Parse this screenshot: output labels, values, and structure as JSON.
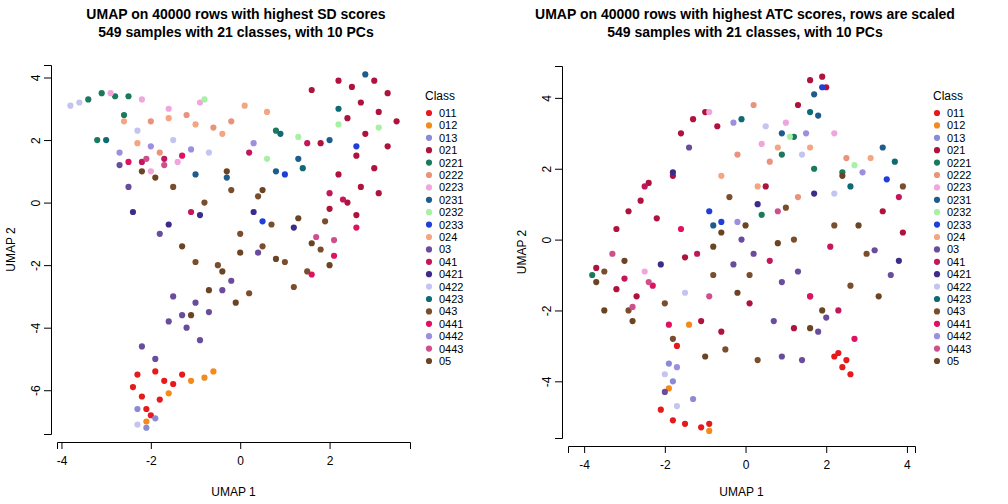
{
  "chart_data": [
    {
      "type": "scatter",
      "title": "UMAP on 40000 rows with highest SD scores",
      "subtitle": "549 samples with 21 classes, with 10 PCs",
      "x_label": "UMAP 1",
      "y_label": "UMAP 2",
      "legend_title": "Class",
      "legend": "right",
      "marker": "circle",
      "xlim": [
        -4.1,
        3.8
      ],
      "ylim": [
        -7.4,
        4.4
      ],
      "xticks": [
        -4,
        -2,
        0,
        2
      ],
      "yticks": [
        -6,
        -4,
        -2,
        0,
        2,
        4
      ],
      "series": [
        {
          "name": "011",
          "color": "#e41a1c",
          "x": [
            -2.3,
            -2.2,
            -2.1,
            -2.0,
            -1.8,
            -1.7,
            -1.5,
            -1.3,
            -2.4,
            -1.9
          ],
          "y": [
            -5.5,
            -6.2,
            -6.6,
            -6.8,
            -6.3,
            -5.7,
            -5.8,
            -5.5,
            -5.9,
            -5.4
          ]
        },
        {
          "name": "012",
          "color": "#f28a1c",
          "x": [
            -0.8,
            -0.6,
            -1.1,
            -1.6,
            -2.1
          ],
          "y": [
            -5.6,
            -5.4,
            -5.7,
            -6.1,
            -7.0
          ]
        },
        {
          "name": "013",
          "color": "#8a8ad6",
          "x": [
            -2.1,
            -1.9,
            -2.3
          ],
          "y": [
            -7.2,
            -6.9,
            -6.6
          ]
        },
        {
          "name": "021",
          "color": "#b0123e",
          "x": [
            2.2,
            2.5,
            3.0,
            3.3,
            2.7,
            3.1,
            2.4,
            3.5,
            2.8,
            3.3,
            2.6,
            3.0,
            2.2,
            2.7,
            3.1,
            2.4,
            2.0,
            2.6,
            1.6,
            1.8
          ],
          "y": [
            3.9,
            3.7,
            3.9,
            3.5,
            3.2,
            2.9,
            2.7,
            2.6,
            2.2,
            1.8,
            1.5,
            1.1,
            0.9,
            0.5,
            0.3,
            0.0,
            -0.2,
            -0.4,
            3.6,
            1.9
          ]
        },
        {
          "name": "0221",
          "color": "#1b7a5e",
          "x": [
            -3.4,
            -3.1,
            -2.8,
            -2.5,
            -3.2,
            -2.6,
            0.8
          ],
          "y": [
            3.3,
            3.5,
            3.4,
            3.4,
            2.0,
            2.8,
            2.3
          ]
        },
        {
          "name": "0222",
          "color": "#e9937c",
          "x": [
            -2.0,
            -1.2,
            -0.6,
            -0.2,
            -1.8
          ],
          "y": [
            2.6,
            2.8,
            2.4,
            2.6,
            1.6
          ]
        },
        {
          "name": "0223",
          "color": "#f0a6dc",
          "x": [
            -2.9,
            -2.2,
            -1.6,
            -0.9,
            -2.0,
            -1.4
          ],
          "y": [
            3.5,
            3.3,
            3.0,
            3.2,
            1.0,
            1.3
          ]
        },
        {
          "name": "0231",
          "color": "#1f5c8e",
          "x": [
            -0.3,
            0.8,
            1.3,
            2.8,
            2.0,
            -1.0
          ],
          "y": [
            0.8,
            1.0,
            1.4,
            4.1,
            2.0,
            0.9
          ]
        },
        {
          "name": "0232",
          "color": "#a8f0a4",
          "x": [
            0.6,
            1.3,
            2.2,
            3.1,
            -0.8
          ],
          "y": [
            1.4,
            2.1,
            2.5,
            2.4,
            3.3
          ]
        },
        {
          "name": "0233",
          "color": "#1f3fd8",
          "x": [
            0.5,
            1.0,
            2.6
          ],
          "y": [
            -0.6,
            0.9,
            1.8
          ]
        },
        {
          "name": "024",
          "color": "#f4a582",
          "x": [
            -2.6,
            -1.6,
            -1.0,
            0.1,
            0.6,
            -0.4,
            -2.3
          ],
          "y": [
            2.6,
            2.7,
            2.5,
            3.1,
            2.9,
            2.2,
            1.9
          ]
        },
        {
          "name": "03",
          "color": "#6a4c9c",
          "x": [
            -2.7,
            -2.5,
            -1.8,
            -1.5,
            -1.3,
            -1.0,
            -1.2,
            -0.7,
            -0.2,
            -0.4,
            -2.2,
            -1.9,
            0.4,
            -0.9,
            -1.6
          ],
          "y": [
            1.2,
            0.5,
            -1.0,
            -3.0,
            -3.6,
            -3.2,
            -4.0,
            -3.5,
            -2.5,
            -2.8,
            -4.6,
            -5.0,
            -1.6,
            -4.4,
            -3.8
          ]
        },
        {
          "name": "041",
          "color": "#c2185b",
          "x": [
            -2.2,
            -1.7,
            0.2,
            1.5,
            2.0,
            2.3,
            -1.1
          ],
          "y": [
            1.3,
            1.4,
            1.6,
            1.9,
            0.3,
            0.1,
            -0.3
          ]
        },
        {
          "name": "0421",
          "color": "#3d2b8c",
          "x": [
            -2.4,
            -1.6,
            -0.9,
            0.3,
            1.2
          ],
          "y": [
            -0.3,
            -0.7,
            -0.4,
            -0.3,
            -0.8
          ]
        },
        {
          "name": "0422",
          "color": "#c4c4f0",
          "x": [
            -3.6,
            -3.8,
            -2.3,
            -1.5,
            -0.7,
            -2.3
          ],
          "y": [
            3.2,
            3.1,
            2.3,
            2.0,
            1.6,
            -7.1
          ]
        },
        {
          "name": "0423",
          "color": "#0f6a74",
          "x": [
            -3.0,
            1.4,
            2.2,
            0.9
          ],
          "y": [
            2.0,
            1.1,
            3.0,
            2.2
          ]
        },
        {
          "name": "043",
          "color": "#7a4e2d",
          "x": [
            -1.5,
            -0.8,
            0.0,
            0.5,
            1.0,
            1.5,
            -0.5,
            0.2,
            -1.0,
            1.8,
            1.2,
            0.7,
            -0.2,
            1.9,
            0.4
          ],
          "y": [
            0.5,
            0.0,
            -1.0,
            -1.4,
            -1.9,
            -2.2,
            -2.0,
            -2.9,
            -1.9,
            -1.5,
            -2.7,
            -0.7,
            0.4,
            -0.6,
            0.2
          ]
        },
        {
          "name": "0441",
          "color": "#e0115f",
          "x": [
            -2.5,
            -1.3,
            2.6,
            2.1,
            1.6
          ],
          "y": [
            1.3,
            1.5,
            -0.8,
            -1.7,
            -2.3
          ]
        },
        {
          "name": "0442",
          "color": "#9c8fe0",
          "x": [
            -2.0,
            -1.1,
            0.3,
            -2.7
          ],
          "y": [
            1.8,
            1.7,
            1.9,
            1.6
          ]
        },
        {
          "name": "0443",
          "color": "#cf4f8c",
          "x": [
            -2.1,
            -1.7,
            2.1,
            1.7
          ],
          "y": [
            1.4,
            1.2,
            -1.2,
            -1.1
          ]
        },
        {
          "name": "05",
          "color": "#6b4423",
          "x": [
            -2.2,
            -1.9,
            -0.3,
            0.0,
            -0.4,
            0.8,
            1.6,
            2.0,
            -0.7,
            -0.1,
            -1.3,
            0.5,
            1.3,
            -1.1
          ],
          "y": [
            1.0,
            0.8,
            1.0,
            -1.6,
            -2.2,
            -1.8,
            -1.3,
            -2.0,
            -2.8,
            -3.2,
            -1.4,
            0.4,
            -0.5,
            -3.6
          ]
        }
      ]
    },
    {
      "type": "scatter",
      "title": "UMAP on 40000 rows with highest ATC scores, rows are scaled",
      "subtitle": "549 samples with 21 classes, with 10 PCs",
      "x_label": "UMAP 1",
      "y_label": "UMAP 2",
      "legend_title": "Class",
      "legend": "right",
      "marker": "circle",
      "xlim": [
        -4.4,
        4.2
      ],
      "ylim": [
        -5.6,
        4.9
      ],
      "xticks": [
        -4,
        -2,
        0,
        2,
        4
      ],
      "yticks": [
        -4,
        -2,
        0,
        2,
        4
      ],
      "series": [
        {
          "name": "011",
          "color": "#e41a1c",
          "x": [
            -2.1,
            -1.8,
            -1.5,
            -1.1,
            -0.9,
            2.3,
            2.5,
            2.6,
            2.4,
            2.2,
            -1.7
          ],
          "y": [
            -4.8,
            -5.1,
            -5.2,
            -5.3,
            -5.2,
            -3.2,
            -3.4,
            -3.8,
            -3.6,
            -3.3,
            -3.0
          ]
        },
        {
          "name": "012",
          "color": "#f28a1c",
          "x": [
            -0.9,
            -1.4,
            -1.9
          ],
          "y": [
            -5.4,
            -2.4,
            -4.2
          ]
        },
        {
          "name": "013",
          "color": "#8a8ad6",
          "x": [
            -1.8,
            -1.3,
            -1.9
          ],
          "y": [
            -4.0,
            -4.5,
            -3.5
          ]
        },
        {
          "name": "021",
          "color": "#b0123e",
          "x": [
            -3.7,
            -3.2,
            -2.9,
            -2.6,
            -2.4,
            -2.2,
            -2.7,
            -3.2,
            -1.8,
            -1.6,
            -1.3,
            -1.0,
            -0.7,
            -1.5,
            -1.1,
            -0.6,
            0.1,
            0.5,
            1.6,
            1.9,
            2.0,
            1.3,
            3.4,
            3.9,
            1.2
          ],
          "y": [
            -0.8,
            0.3,
            0.8,
            1.1,
            1.6,
            0.6,
            -1.6,
            -1.4,
            1.8,
            3.0,
            3.4,
            3.6,
            3.2,
            -0.5,
            -2.3,
            -2.6,
            -1.8,
            1.5,
            4.5,
            4.6,
            4.3,
            3.8,
            0.8,
            0.2,
            -2.5
          ]
        },
        {
          "name": "0221",
          "color": "#1b7a5e",
          "x": [
            0.9,
            1.2,
            1.7,
            2.4,
            0.4,
            -3.8
          ],
          "y": [
            2.4,
            2.9,
            2.0,
            1.9,
            0.7,
            -1.0
          ]
        },
        {
          "name": "0222",
          "color": "#e9937c",
          "x": [
            0.2,
            0.6,
            1.3,
            2.5,
            -0.2
          ],
          "y": [
            3.8,
            2.2,
            1.2,
            2.3,
            2.4
          ]
        },
        {
          "name": "0223",
          "color": "#f0a6dc",
          "x": [
            0.4,
            1.0,
            2.2,
            -0.9,
            -2.5
          ],
          "y": [
            2.7,
            3.3,
            3.0,
            3.6,
            -0.9
          ]
        },
        {
          "name": "0231",
          "color": "#1f5c8e",
          "x": [
            1.7,
            1.8,
            3.4,
            0.9,
            -0.8
          ],
          "y": [
            4.1,
            3.5,
            2.6,
            3.0,
            0.4
          ]
        },
        {
          "name": "0232",
          "color": "#a8f0a4",
          "x": [
            1.1,
            2.7
          ],
          "y": [
            2.9,
            2.1
          ]
        },
        {
          "name": "0233",
          "color": "#1f3fd8",
          "x": [
            -0.9,
            -0.6,
            1.9,
            3.5
          ],
          "y": [
            0.8,
            0.5,
            4.3,
            1.7
          ]
        },
        {
          "name": "024",
          "color": "#f4a582",
          "x": [
            -0.6,
            0.8,
            1.6,
            3.1,
            0.3
          ],
          "y": [
            1.8,
            2.6,
            2.6,
            2.3,
            1.5
          ]
        },
        {
          "name": "03",
          "color": "#6a4c9c",
          "x": [
            -1.4,
            -0.1,
            0.2,
            0.9,
            1.3,
            1.6,
            0.7,
            0.9,
            1.4,
            1.8,
            2.0,
            -2.0,
            3.2,
            3.6,
            -0.3
          ],
          "y": [
            2.6,
            0.0,
            -0.4,
            -1.2,
            -0.9,
            -1.6,
            -2.3,
            -3.3,
            -3.4,
            -2.6,
            -2.2,
            -4.3,
            -0.3,
            -1.0,
            -0.7
          ]
        },
        {
          "name": "041",
          "color": "#c2185b",
          "x": [
            -2.5,
            -3.0,
            -1.2,
            0.6,
            2.3,
            3.8,
            2.1
          ],
          "y": [
            1.5,
            -1.1,
            -0.4,
            -0.6,
            -2.0,
            1.2,
            -0.2
          ]
        },
        {
          "name": "0421",
          "color": "#3d2b8c",
          "x": [
            -1.8,
            0.3,
            1.7,
            3.8,
            -2.1
          ],
          "y": [
            1.9,
            1.0,
            1.3,
            -0.6,
            -0.7
          ]
        },
        {
          "name": "0422",
          "color": "#c4c4f0",
          "x": [
            0.5,
            1.4,
            2.2,
            -1.5,
            -2.0,
            -1.7
          ],
          "y": [
            3.2,
            2.4,
            1.3,
            -1.5,
            -3.8,
            -4.7
          ]
        },
        {
          "name": "0423",
          "color": "#0f6a74",
          "x": [
            1.6,
            2.6,
            3.7,
            -0.1
          ],
          "y": [
            3.6,
            1.5,
            2.2,
            3.4
          ]
        },
        {
          "name": "043",
          "color": "#7a4e2d",
          "x": [
            -3.5,
            -2.0,
            -0.4,
            0.1,
            1.0,
            2.2,
            3.0,
            -1.8,
            -0.5,
            0.3,
            1.2,
            -0.8,
            3.9,
            2.6,
            -2.9
          ],
          "y": [
            -0.9,
            -1.8,
            1.2,
            -1.0,
            0.9,
            0.4,
            -0.4,
            -2.8,
            -3.1,
            -3.4,
            0.0,
            -1.0,
            1.5,
            -1.3,
            -2.0
          ]
        },
        {
          "name": "0441",
          "color": "#e0115f",
          "x": [
            -1.9,
            -1.6,
            2.7,
            1.6,
            -2.3
          ],
          "y": [
            -2.4,
            0.3,
            -2.8,
            -1.6,
            -1.3
          ]
        },
        {
          "name": "0442",
          "color": "#9c8fe0",
          "x": [
            -0.3,
            1.5,
            2.9,
            -1.7,
            -0.2
          ],
          "y": [
            3.3,
            3.0,
            1.9,
            -3.6,
            0.5
          ]
        },
        {
          "name": "0443",
          "color": "#cf4f8c",
          "x": [
            -3.3,
            -2.4,
            -0.9,
            0.8,
            -2.8
          ],
          "y": [
            -0.4,
            -1.2,
            -1.6,
            0.8,
            -1.9
          ]
        },
        {
          "name": "05",
          "color": "#6b4423",
          "x": [
            -3.7,
            -3.5,
            -2.8,
            -0.8,
            -0.6,
            0.0,
            0.8,
            1.6,
            1.9,
            2.8,
            3.3,
            -0.2,
            -1.0,
            2.4,
            -3.0
          ],
          "y": [
            -1.2,
            -2.0,
            -2.3,
            -0.2,
            0.2,
            0.4,
            -0.1,
            -2.5,
            -2.0,
            0.4,
            -1.6,
            -1.5,
            -3.3,
            1.8,
            -0.6
          ]
        }
      ]
    }
  ]
}
